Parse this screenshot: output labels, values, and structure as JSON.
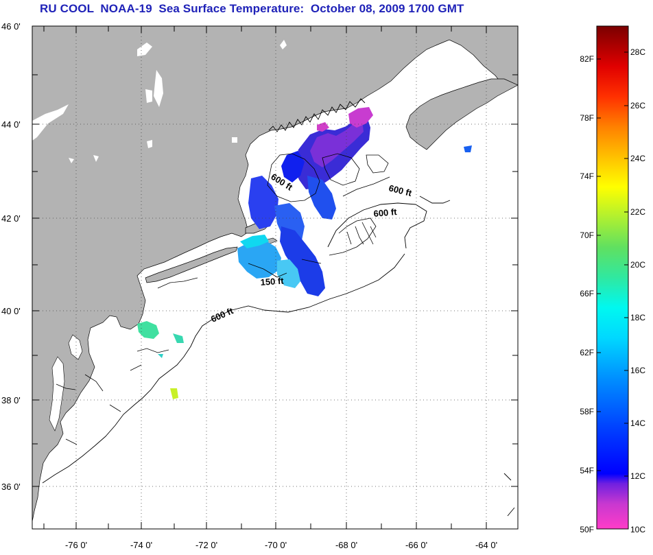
{
  "title": "RU COOL  NOAA-19  Sea Surface Temperature:  October 08, 2009 1700 GMT",
  "map": {
    "lat_labels": [
      "46 0'",
      "44 0'",
      "42 0'",
      "40 0'",
      "38 0'",
      "36 0'"
    ],
    "lon_labels": [
      "-76 0'",
      "-74 0'",
      "-72 0'",
      "-70 0'",
      "-68 0'",
      "-66 0'",
      "-64 0'"
    ],
    "contour_labels": [
      "600 ft",
      "600 ft",
      "600 ft",
      "150 ft",
      "600 ft"
    ],
    "colors": {
      "land": "#b3b3b3",
      "ocean": "#ffffff",
      "coast": "#000000",
      "grid": "#555555"
    }
  },
  "colorbar": {
    "fahrenheit_labels": [
      "82F",
      "78F",
      "74F",
      "70F",
      "66F",
      "62F",
      "58F",
      "54F",
      "50F"
    ],
    "celsius_labels": [
      "28C",
      "26C",
      "24C",
      "22C",
      "20C",
      "18C",
      "16C",
      "14C",
      "12C",
      "10C"
    ],
    "range_celsius": [
      10,
      29.5
    ],
    "gradient_colors": [
      "#ff3cc8",
      "#9a30d8",
      "#0000ff",
      "#0060ff",
      "#00b4ff",
      "#00f0ff",
      "#30e8a0",
      "#60e060",
      "#c0f020",
      "#ffff00",
      "#ffc000",
      "#ff7000",
      "#ff2000",
      "#d00000",
      "#7a0000"
    ]
  }
}
